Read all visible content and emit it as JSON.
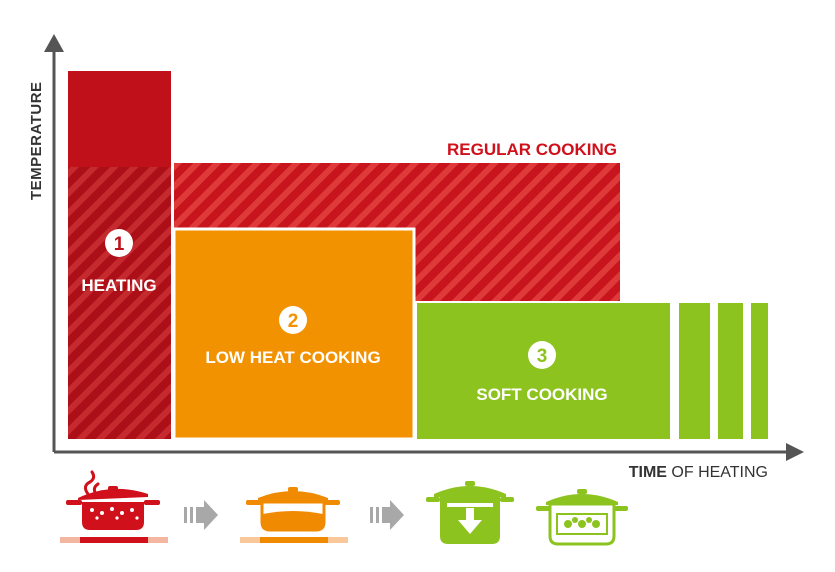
{
  "axes": {
    "y_label": "TEMPERATURE",
    "x_label_bold": "TIME",
    "x_label_rest": " OF HEATING"
  },
  "regular_cooking": {
    "label": "REGULAR COOKING",
    "color": "#d0101a"
  },
  "phases": [
    {
      "number": "1",
      "label": "HEATING",
      "color": "#c20f19"
    },
    {
      "number": "2",
      "label": "LOW HEAT COOKING",
      "color": "#f39200"
    },
    {
      "number": "3",
      "label": "SOFT COOKING",
      "color": "#8dc31e"
    }
  ],
  "pots": [
    {
      "icon": "boiling-pot-icon",
      "color": "#d0101a"
    },
    {
      "icon": "simmering-pot-icon",
      "color": "#f08a00"
    },
    {
      "icon": "pressure-down-pot-icon",
      "color": "#8dc31e"
    },
    {
      "icon": "steaming-pot-icon",
      "color": "#8dc31e"
    }
  ],
  "arrow_color": "#a8a8a8",
  "stove_color": "#f3b6a0"
}
